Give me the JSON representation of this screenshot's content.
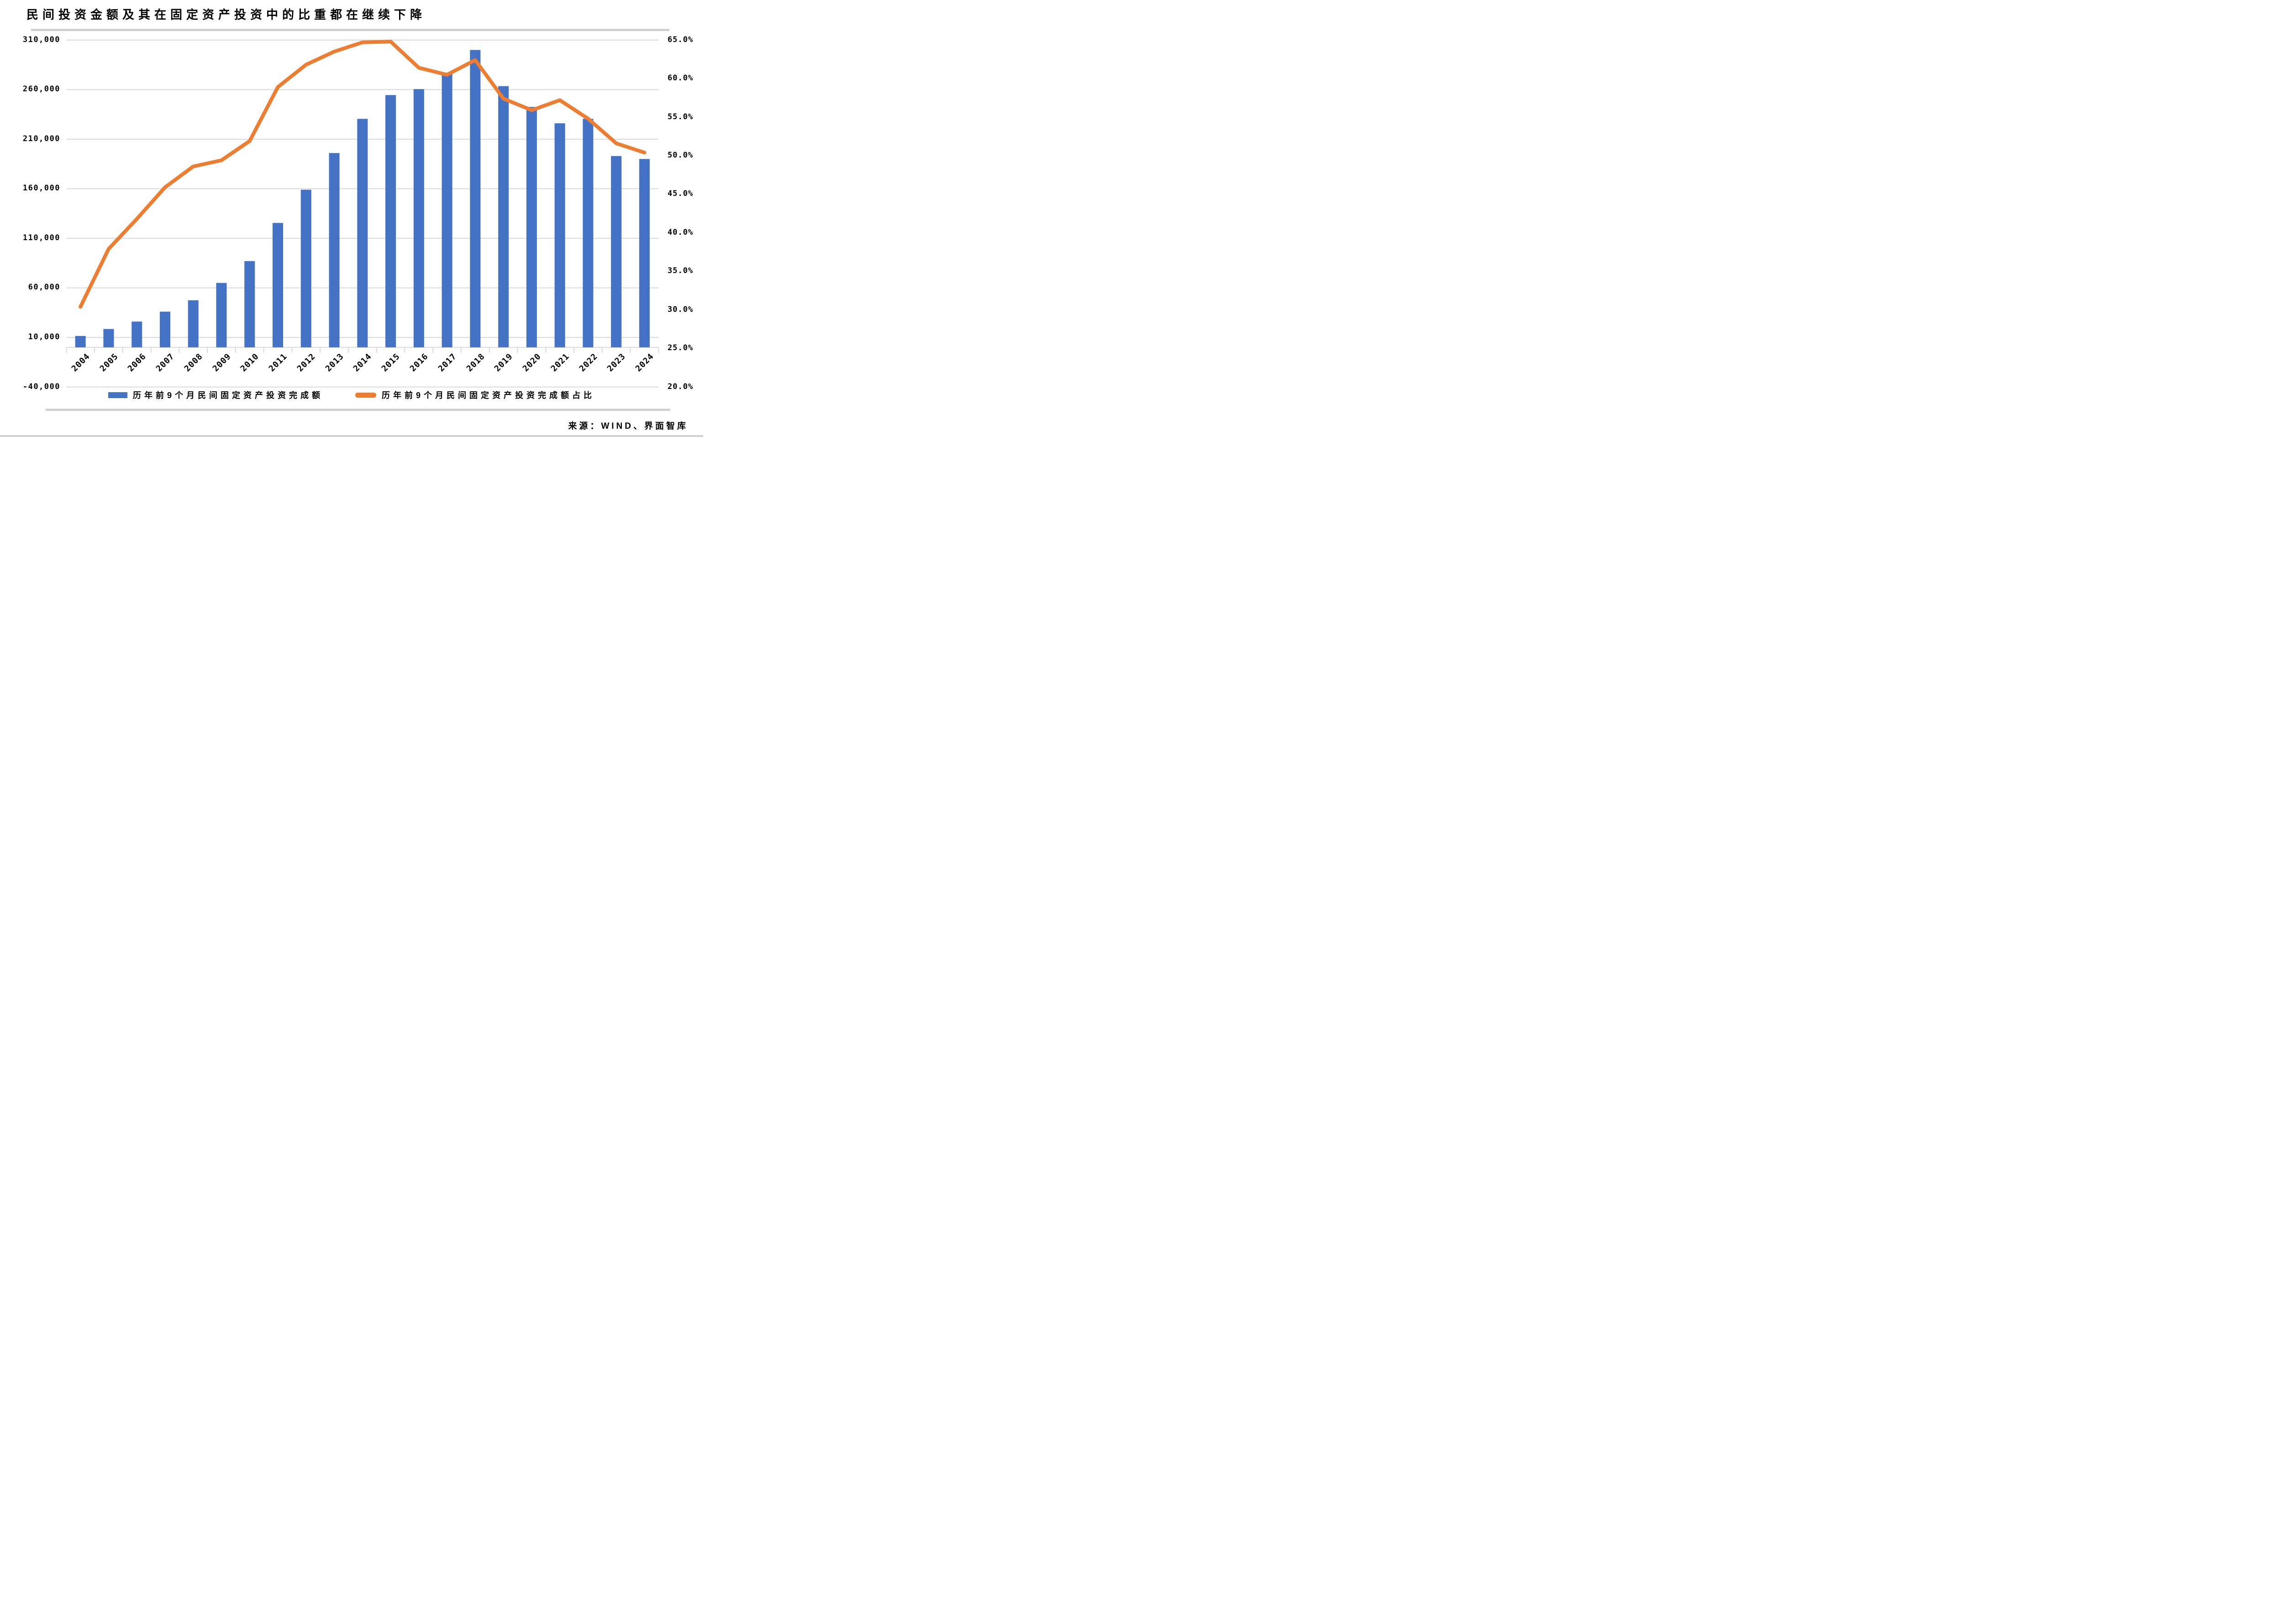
{
  "title": "民间投资金额及其在固定资产投资中的比重都在继续下降",
  "source": "来源：WIND、界面智库",
  "colors": {
    "bar": "#4472C4",
    "line": "#ED7D31",
    "gridline": "#D9D9D9",
    "divider": "#D2D2D2"
  },
  "legend": [
    {
      "label": "历年前9个月民间固定资产投资完成额",
      "marker": "bar-swatch",
      "color": "#4472C4"
    },
    {
      "label": "历年前9个月民间固定资产投资完成额占比",
      "marker": "line-swatch",
      "color": "#ED7D31"
    }
  ],
  "chart_data": {
    "type": "bar",
    "subtype": "bar+line dual axis",
    "title": "民间投资金额及其在固定资产投资中的比重都在继续下降",
    "categories": [
      "2004",
      "2005",
      "2006",
      "2007",
      "2008",
      "2009",
      "2010",
      "2011",
      "2012",
      "2013",
      "2014",
      "2015",
      "2016",
      "2017",
      "2018",
      "2019",
      "2020",
      "2021",
      "2022",
      "2023",
      "2024"
    ],
    "series": [
      {
        "name": "历年前9个月民间固定资产投资完成额",
        "type": "bar",
        "axis": "left",
        "color": "#4472C4",
        "values": [
          11500,
          18500,
          26000,
          36000,
          47500,
          65000,
          87000,
          125500,
          159000,
          196000,
          230500,
          254500,
          260500,
          277000,
          300000,
          263500,
          242500,
          226000,
          230500,
          193000,
          190000
        ]
      },
      {
        "name": "历年前9个月民间固定资产投资完成额占比",
        "type": "line",
        "axis": "right",
        "color": "#ED7D31",
        "values": [
          30.4,
          37.9,
          41.8,
          45.9,
          48.6,
          49.4,
          51.9,
          58.9,
          61.8,
          63.5,
          64.7,
          64.8,
          61.4,
          60.5,
          62.4,
          57.4,
          55.9,
          57.2,
          54.8,
          51.6,
          50.4
        ]
      }
    ],
    "left_axis": {
      "min": -40000,
      "max": 310000,
      "tick_step": 50000,
      "tick_values": [
        310000,
        260000,
        210000,
        160000,
        110000,
        60000,
        10000,
        -40000
      ],
      "tick_labels": [
        "310,000",
        "260,000",
        "210,000",
        "160,000",
        "110,000",
        "60,000",
        "10,000",
        "-40,000"
      ]
    },
    "right_axis": {
      "min": 20,
      "max": 65,
      "tick_step": 5,
      "tick_values": [
        65,
        60,
        55,
        50,
        45,
        40,
        35,
        30,
        25,
        20
      ],
      "tick_labels": [
        "65.0%",
        "60.0%",
        "55.0%",
        "50.0%",
        "45.0%",
        "40.0%",
        "35.0%",
        "30.0%",
        "25.0%",
        "20.0%"
      ]
    },
    "grid": true,
    "legend_position": "bottom"
  }
}
